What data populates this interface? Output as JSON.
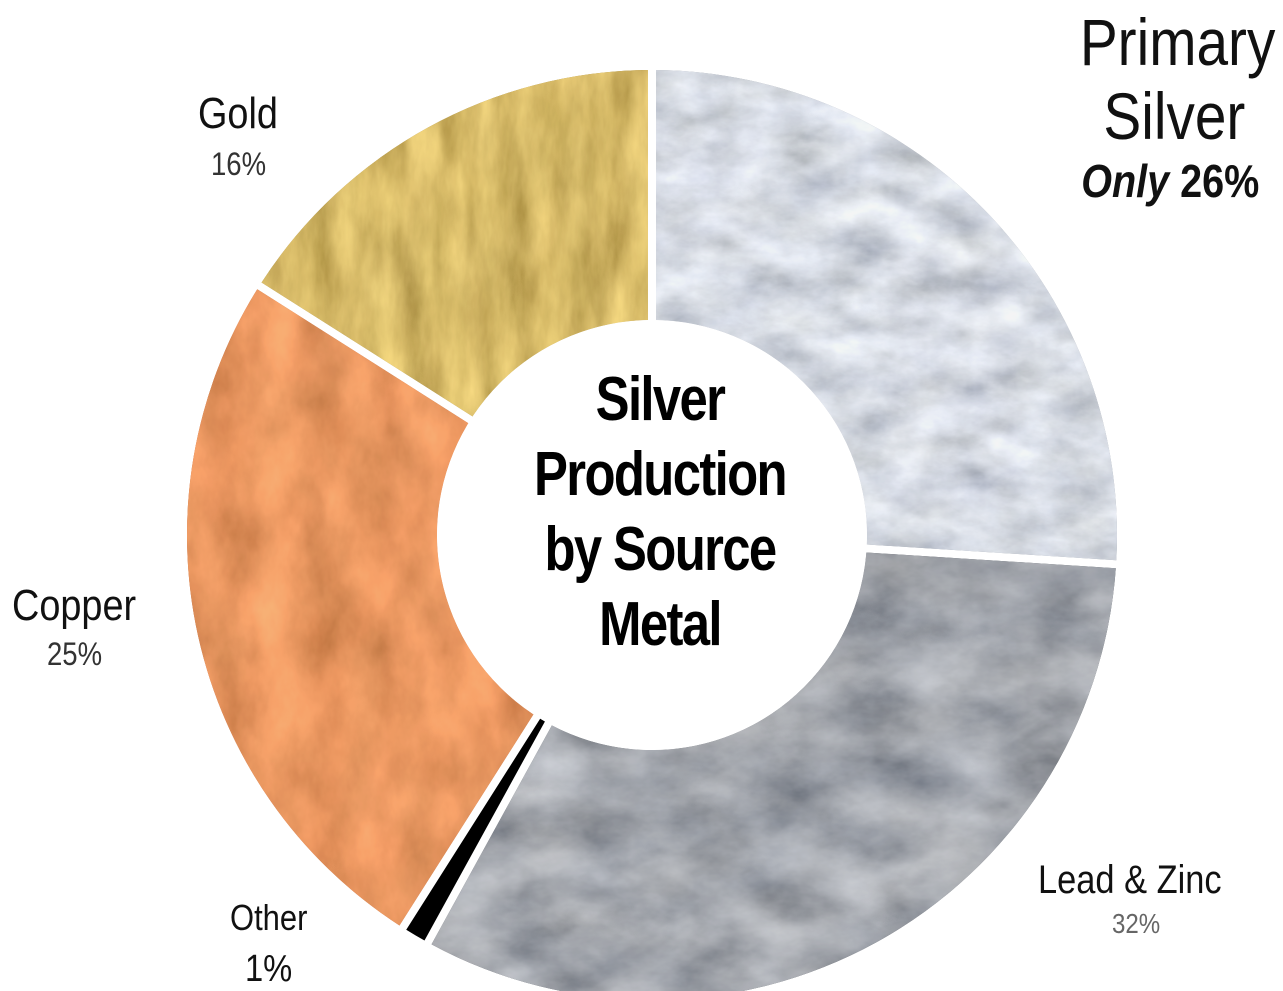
{
  "chart_data": {
    "type": "pie",
    "variant": "donut",
    "title": "Silver Production by Source Metal",
    "title_lines": [
      "Silver",
      "Production",
      "by Source",
      "Metal"
    ],
    "start_angle_deg": 0,
    "direction": "clockwise",
    "slices": [
      {
        "label": "",
        "value": 26,
        "value_label": "",
        "texture": "silver-ore",
        "color": "#8f969c"
      },
      {
        "label": "Lead & Zinc",
        "value": 32,
        "value_label": "32%",
        "texture": "dark-rock",
        "color": "#3c3f43"
      },
      {
        "label": "Other",
        "value": 1,
        "value_label": "1%",
        "texture": "solid",
        "color": "#000000"
      },
      {
        "label": "Copper",
        "value": 25,
        "value_label": "25%",
        "texture": "red-rock",
        "color": "#b54d1f"
      },
      {
        "label": "Gold",
        "value": 16,
        "value_label": "16%",
        "texture": "gold-ore",
        "color": "#9a7a1c"
      }
    ],
    "annotation": {
      "line1": "Primary",
      "line2": "Silver",
      "emphasis_word": "Only",
      "emphasis_value": "26%"
    }
  }
}
